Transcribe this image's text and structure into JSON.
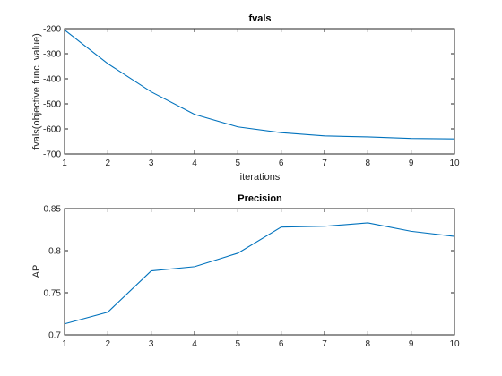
{
  "chart_data": [
    {
      "type": "line",
      "title": "fvals",
      "xlabel": "iterations",
      "ylabel": "fvals(objective func. value)",
      "xlim": [
        1,
        10
      ],
      "ylim": [
        -700,
        -200
      ],
      "xticks": [
        "1",
        "2",
        "3",
        "4",
        "5",
        "6",
        "7",
        "8",
        "9",
        "10"
      ],
      "yticks": [
        "-700",
        "-600",
        "-500",
        "-400",
        "-300",
        "-200"
      ],
      "grid": false,
      "x": [
        1,
        2,
        3,
        4,
        5,
        6,
        7,
        8,
        9,
        10
      ],
      "series": [
        {
          "values": [
            -205,
            -340,
            -452,
            -542,
            -592,
            -615,
            -628,
            -632,
            -638,
            -640
          ],
          "color": "#0072BD"
        }
      ]
    },
    {
      "type": "line",
      "title": "Precision",
      "xlabel": "",
      "ylabel": "AP",
      "xlim": [
        1,
        10
      ],
      "ylim": [
        0.7,
        0.85
      ],
      "xticks": [
        "1",
        "2",
        "3",
        "4",
        "5",
        "6",
        "7",
        "8",
        "9",
        "10"
      ],
      "yticks": [
        "0.7",
        "0.75",
        "0.8",
        "0.85"
      ],
      "grid": false,
      "x": [
        1,
        2,
        3,
        4,
        5,
        6,
        7,
        8,
        9,
        10
      ],
      "series": [
        {
          "values": [
            0.713,
            0.727,
            0.776,
            0.781,
            0.797,
            0.828,
            0.829,
            0.833,
            0.823,
            0.817
          ],
          "color": "#0072BD"
        }
      ]
    }
  ]
}
